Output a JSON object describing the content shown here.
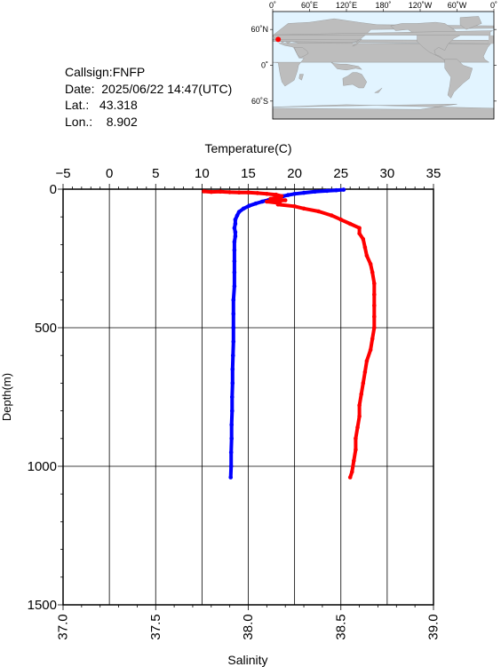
{
  "info": {
    "callsign": "Callsign:FNFP",
    "date": "Date:  2025/06/22 14:47(UTC)",
    "lat": "Lat.:   43.318",
    "lon": "Lon.:    8.902"
  },
  "map": {
    "top_labels": [
      "0˚",
      "60˚E",
      "120˚E",
      "180˚",
      "120˚W",
      "60˚W",
      "0˚"
    ],
    "left_labels": [
      "60˚N",
      "0˚",
      "60˚S"
    ],
    "station": {
      "lon": 8.902,
      "lat": 43.318
    },
    "colors": {
      "ocean": "#e2f4ff",
      "land": "#bdbdbd",
      "marker": "#ff0000"
    }
  },
  "chart_data": {
    "type": "line",
    "title": "",
    "xlabel_top": "Temperature(C)",
    "xlabel_bottom": "Salinity",
    "ylabel": "Depth(m)",
    "temp_lim": [
      -5,
      35
    ],
    "temp_ticks": [
      "-5",
      "0",
      "5",
      "10",
      "15",
      "20",
      "25",
      "30",
      "35"
    ],
    "sal_lim": [
      37.0,
      39.0
    ],
    "sal_ticks": [
      "37.0",
      "37.5",
      "38.0",
      "38.5",
      "39.0"
    ],
    "depth_lim": [
      0,
      1500
    ],
    "depth_ticks": [
      "0",
      "500",
      "1000",
      "1500"
    ],
    "grid": true,
    "series": [
      {
        "variable": "temperature",
        "color": "#0000ff",
        "points": [
          [
            25.3,
            2
          ],
          [
            24.5,
            4
          ],
          [
            23.5,
            6
          ],
          [
            22.2,
            9
          ],
          [
            21.0,
            13
          ],
          [
            20.0,
            17
          ],
          [
            19.3,
            21
          ],
          [
            18.8,
            25
          ],
          [
            18.3,
            29
          ],
          [
            17.8,
            34
          ],
          [
            17.2,
            39
          ],
          [
            16.5,
            45
          ],
          [
            15.8,
            52
          ],
          [
            15.1,
            60
          ],
          [
            14.5,
            70
          ],
          [
            14.0,
            82
          ],
          [
            13.8,
            95
          ],
          [
            13.6,
            110
          ],
          [
            13.6,
            125
          ],
          [
            13.5,
            140
          ],
          [
            13.6,
            155
          ],
          [
            13.6,
            170
          ],
          [
            13.5,
            190
          ],
          [
            13.5,
            220
          ],
          [
            13.5,
            260
          ],
          [
            13.5,
            300
          ],
          [
            13.5,
            350
          ],
          [
            13.4,
            400
          ],
          [
            13.4,
            450
          ],
          [
            13.4,
            500
          ],
          [
            13.4,
            550
          ],
          [
            13.35,
            600
          ],
          [
            13.3,
            650
          ],
          [
            13.3,
            700
          ],
          [
            13.25,
            750
          ],
          [
            13.25,
            800
          ],
          [
            13.2,
            850
          ],
          [
            13.2,
            900
          ],
          [
            13.15,
            950
          ],
          [
            13.15,
            1000
          ],
          [
            13.1,
            1040
          ]
        ]
      },
      {
        "variable": "salinity",
        "color": "#ff0000",
        "points": [
          [
            37.76,
            8
          ],
          [
            37.8,
            10
          ],
          [
            37.85,
            9
          ],
          [
            37.9,
            11
          ],
          [
            37.95,
            12
          ],
          [
            38.0,
            12
          ],
          [
            38.05,
            14
          ],
          [
            38.1,
            17
          ],
          [
            38.15,
            20
          ],
          [
            38.18,
            25
          ],
          [
            38.15,
            30
          ],
          [
            38.12,
            35
          ],
          [
            38.2,
            40
          ],
          [
            38.1,
            45
          ],
          [
            38.17,
            50
          ],
          [
            38.16,
            55
          ],
          [
            38.25,
            62
          ],
          [
            38.3,
            70
          ],
          [
            38.38,
            80
          ],
          [
            38.45,
            95
          ],
          [
            38.5,
            110
          ],
          [
            38.55,
            125
          ],
          [
            38.6,
            140
          ],
          [
            38.6,
            160
          ],
          [
            38.62,
            180
          ],
          [
            38.63,
            210
          ],
          [
            38.64,
            240
          ],
          [
            38.66,
            270
          ],
          [
            38.67,
            300
          ],
          [
            38.68,
            340
          ],
          [
            38.68,
            380
          ],
          [
            38.68,
            420
          ],
          [
            38.68,
            460
          ],
          [
            38.68,
            500
          ],
          [
            38.67,
            540
          ],
          [
            38.66,
            580
          ],
          [
            38.64,
            620
          ],
          [
            38.63,
            660
          ],
          [
            38.62,
            700
          ],
          [
            38.61,
            740
          ],
          [
            38.6,
            780
          ],
          [
            38.6,
            820
          ],
          [
            38.59,
            860
          ],
          [
            38.58,
            900
          ],
          [
            38.58,
            940
          ],
          [
            38.57,
            980
          ],
          [
            38.56,
            1020
          ],
          [
            38.55,
            1040
          ]
        ]
      }
    ]
  }
}
